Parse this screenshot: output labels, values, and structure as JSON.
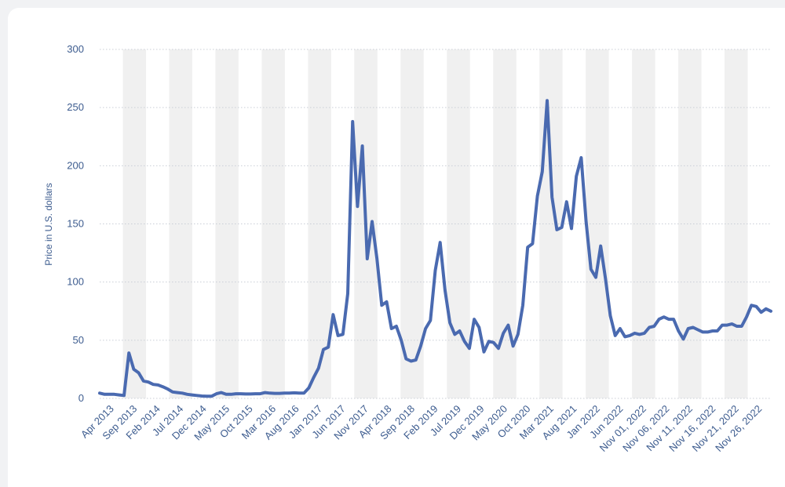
{
  "chart_data": {
    "type": "line",
    "title": "",
    "xlabel": "",
    "ylabel": "Price in U.S. dollars",
    "ylim": [
      0,
      300
    ],
    "yticks": [
      0,
      50,
      100,
      150,
      200,
      250,
      300
    ],
    "grid": true,
    "legend": "none",
    "colors": {
      "line": "#4a6ab0",
      "text": "#3d5c8f",
      "band": "#f0f0f0",
      "grid": "#c9ced6"
    },
    "x_tick_labels": [
      "Apr 2013",
      "Sep 2013",
      "Feb 2014",
      "Jul 2014",
      "Dec 2014",
      "May 2015",
      "Oct 2015",
      "Mar 2016",
      "Aug 2016",
      "Jan 2017",
      "Jun 2017",
      "Nov 2017",
      "Apr 2018",
      "Sep 2018",
      "Feb 2019",
      "Jul 2019",
      "Dec 2019",
      "May 2020",
      "Oct 2020",
      "Mar 2021",
      "Aug 2021",
      "Jan 2022",
      "Jun 2022",
      "Nov 01, 2022",
      "Nov 06, 2022",
      "Nov 11, 2022",
      "Nov 16, 2022",
      "Nov 21, 2022",
      "Nov 26, 2022"
    ],
    "series": [
      {
        "name": "",
        "values": [
          4.5,
          3.5,
          3.5,
          3.5,
          3.0,
          2.5,
          39,
          25,
          22,
          15,
          14,
          12,
          11.5,
          10,
          8,
          5.5,
          5,
          4.5,
          3.5,
          3,
          2.5,
          2,
          1.8,
          1.8,
          4,
          5,
          3.5,
          3.5,
          4,
          4,
          3.8,
          3.8,
          4,
          4,
          5,
          4.5,
          4.3,
          4.3,
          4.5,
          4.5,
          4.8,
          4.5,
          4.5,
          9,
          18,
          26,
          42,
          44,
          72,
          54,
          55,
          90,
          238,
          165,
          217,
          120,
          152,
          120,
          80,
          83,
          60,
          62,
          50,
          34,
          32,
          33,
          45,
          60,
          67,
          110,
          134,
          93,
          65,
          55,
          58,
          49,
          43,
          68,
          61,
          40,
          49,
          48,
          43,
          56,
          63,
          45,
          55,
          80,
          130,
          133,
          174,
          195,
          256,
          173,
          145,
          147,
          169,
          146,
          191,
          207,
          152,
          111,
          104,
          131,
          103,
          71,
          54,
          60,
          53,
          54,
          56,
          55,
          56,
          61,
          62,
          68,
          70,
          68,
          68,
          58,
          51,
          60,
          61,
          59,
          57,
          57,
          58,
          58,
          63,
          63,
          64,
          62,
          62,
          70,
          80,
          79,
          74,
          77,
          75
        ]
      }
    ]
  }
}
